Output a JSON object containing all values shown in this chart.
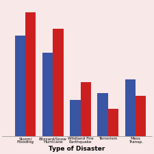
{
  "categories": [
    "Storm/\nFlooding",
    "Blizzard/Snow\nHurricane",
    "Wildland Fire\nEarthquake",
    "Terrorism",
    "Mass\nTransp."
  ],
  "blue_values": [
    75,
    62,
    27,
    32,
    42
  ],
  "red_values": [
    92,
    80,
    40,
    20,
    30
  ],
  "bar_color_blue": "#3955a3",
  "bar_color_red": "#cc2020",
  "xlabel": "Type of Disaster",
  "background_color": "#f8e8e8",
  "grid_color": "#d09090",
  "ylim": [
    0,
    100
  ],
  "xlim_left": -0.85,
  "xlim_right": 4.6,
  "bar_width": 0.38,
  "xlabel_fontsize": 6.5,
  "tick_fontsize": 4.2
}
